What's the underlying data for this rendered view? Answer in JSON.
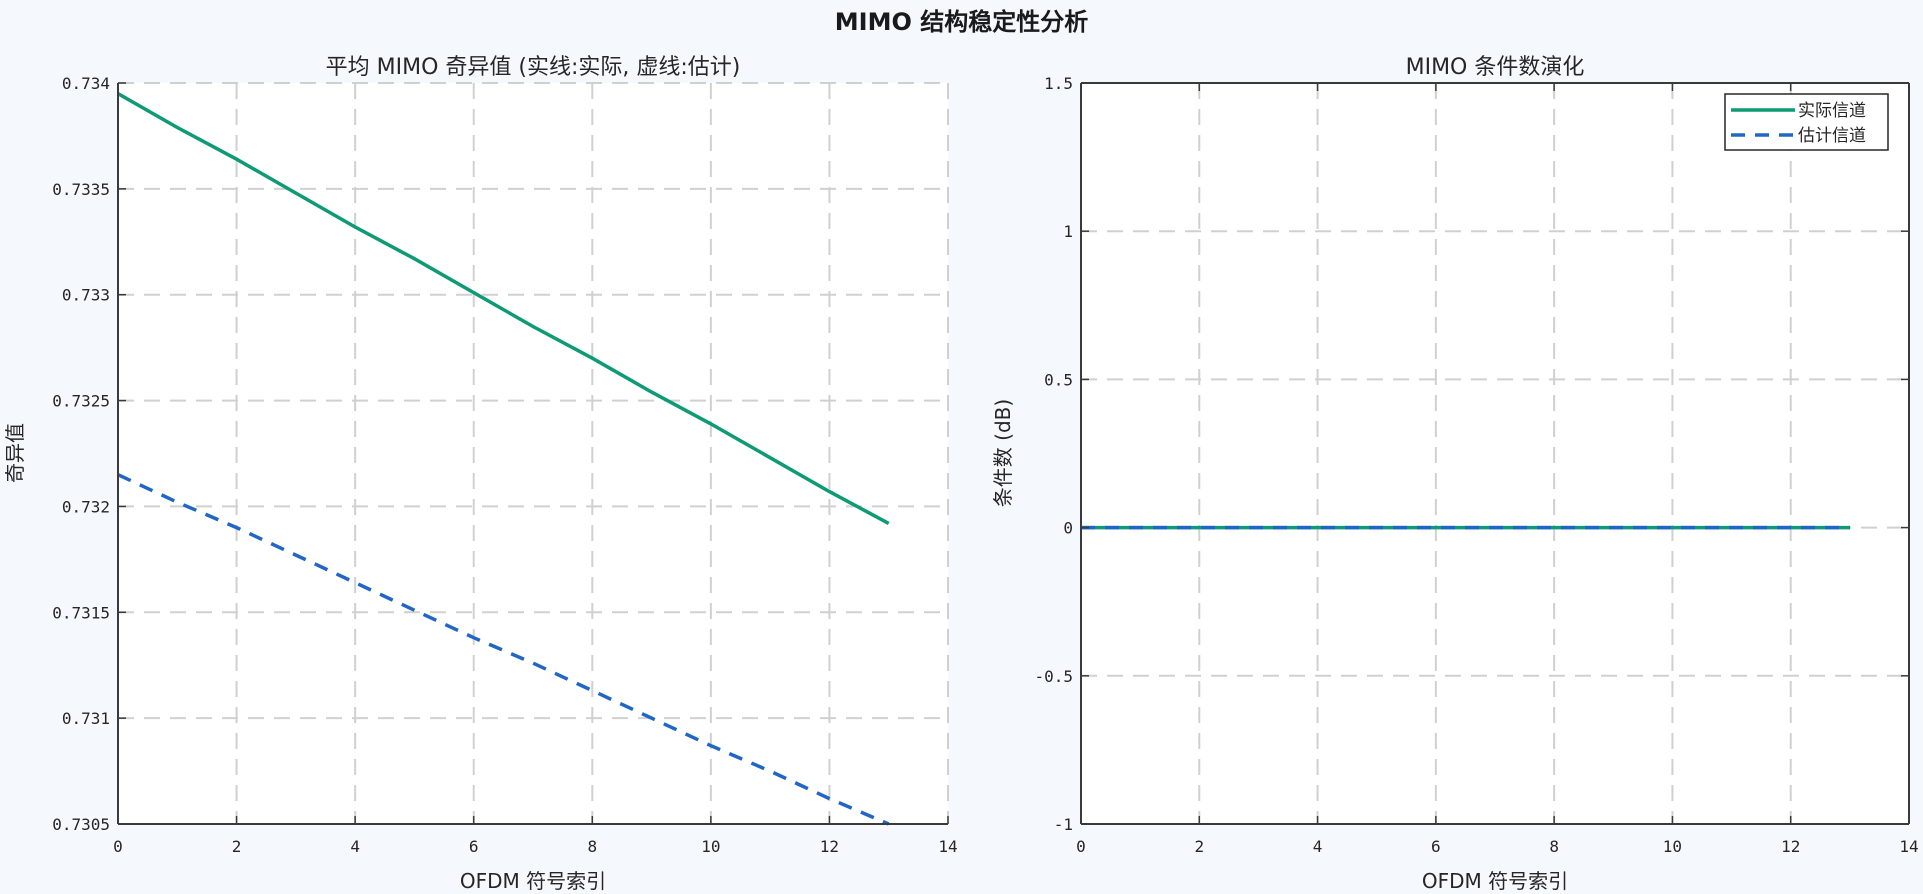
{
  "figure": {
    "suptitle": "MIMO 结构稳定性分析",
    "background": "#f5f9fe"
  },
  "colors": {
    "actual": "#0e9a74",
    "estimated": "#2166c6",
    "grid": "#d0d0d0",
    "axis": "#3a3a3a"
  },
  "chart_data": [
    {
      "type": "line",
      "title": "平均 MIMO 奇异值 (实线:实际, 虚线:估计)",
      "xlabel": "OFDM 符号索引",
      "ylabel": "奇异值",
      "xlim": [
        0,
        14
      ],
      "ylim": [
        0.7305,
        0.734
      ],
      "xticks": [
        "0",
        "2",
        "4",
        "6",
        "8",
        "10",
        "12",
        "14"
      ],
      "yticks": [
        "0.7305",
        "0.731",
        "0.7315",
        "0.732",
        "0.7325",
        "0.733",
        "0.7335",
        "0.734"
      ],
      "grid": true,
      "box": false,
      "x": [
        0,
        1,
        2,
        3,
        4,
        5,
        6,
        7,
        8,
        9,
        10,
        11,
        12,
        13
      ],
      "series": [
        {
          "name": "实际",
          "style": "solid",
          "values": [
            0.73395,
            0.73379,
            0.73364,
            0.73348,
            0.73332,
            0.73317,
            0.73301,
            0.73285,
            0.7327,
            0.73254,
            0.73239,
            0.73223,
            0.73207,
            0.73192
          ]
        },
        {
          "name": "估计",
          "style": "dashed",
          "values": [
            0.73215,
            0.73202,
            0.7319,
            0.73177,
            0.73164,
            0.73151,
            0.73138,
            0.73126,
            0.73113,
            0.731,
            0.73087,
            0.73075,
            0.73062,
            0.7305
          ]
        }
      ]
    },
    {
      "type": "line",
      "title": "MIMO 条件数演化",
      "xlabel": "OFDM 符号索引",
      "ylabel": "条件数 (dB)",
      "xlim": [
        0,
        14
      ],
      "ylim": [
        -1,
        1.5
      ],
      "xticks": [
        "0",
        "2",
        "4",
        "6",
        "8",
        "10",
        "12",
        "14"
      ],
      "yticks": [
        "-1",
        "-0.5",
        "0",
        "0.5",
        "1",
        "1.5"
      ],
      "grid": true,
      "box": true,
      "legend_position": "upper right",
      "x": [
        0,
        1,
        2,
        3,
        4,
        5,
        6,
        7,
        8,
        9,
        10,
        11,
        12,
        13
      ],
      "series": [
        {
          "name": "实际信道",
          "style": "solid",
          "values": [
            0,
            0,
            0,
            0,
            0,
            0,
            0,
            0,
            0,
            0,
            0,
            0,
            0,
            0
          ]
        },
        {
          "name": "估计信道",
          "style": "dashed",
          "values": [
            0,
            0,
            0,
            0,
            0,
            0,
            0,
            0,
            0,
            0,
            0,
            0,
            0,
            0
          ]
        }
      ]
    }
  ]
}
